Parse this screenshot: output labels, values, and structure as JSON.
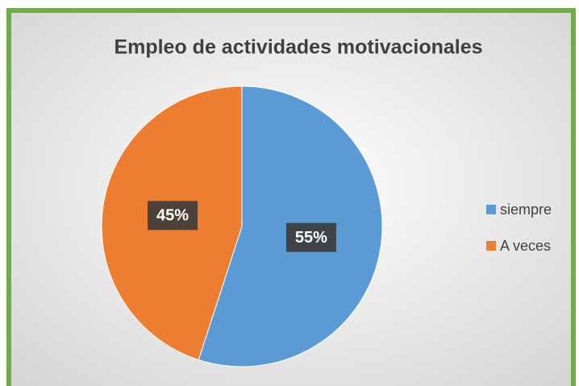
{
  "chart_data": {
    "type": "pie",
    "title": "Empleo de actividades motivacionales",
    "categories": [
      "siempre",
      "A veces"
    ],
    "values": [
      55,
      45
    ],
    "value_labels": [
      "55%",
      "45%"
    ],
    "colors": [
      "#5b9bd5",
      "#ed7d31"
    ],
    "legend": "right"
  }
}
